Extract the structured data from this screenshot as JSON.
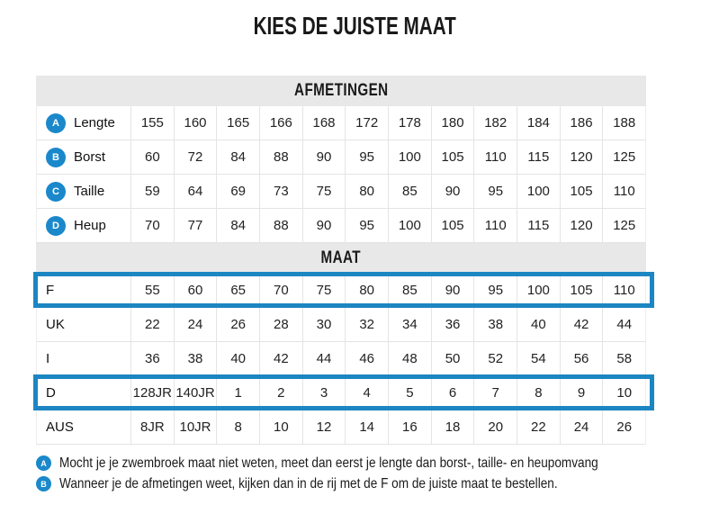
{
  "colors": {
    "accent_blue": "#1c86c2",
    "icon_blue": "#1a88ca",
    "header_bg": "#e8e8e8"
  },
  "chart_data": {
    "type": "table",
    "title": "KIES DE JUISTE MAAT",
    "sections": [
      {
        "header": "AFMETINGEN",
        "rows": [
          {
            "icon": "A",
            "label": "Lengte",
            "highlighted": false,
            "values": [
              "155",
              "160",
              "165",
              "166",
              "168",
              "172",
              "178",
              "180",
              "182",
              "184",
              "186",
              "188"
            ]
          },
          {
            "icon": "B",
            "label": "Borst",
            "highlighted": false,
            "values": [
              "60",
              "72",
              "84",
              "88",
              "90",
              "95",
              "100",
              "105",
              "110",
              "115",
              "120",
              "125"
            ]
          },
          {
            "icon": "C",
            "label": "Taille",
            "highlighted": false,
            "values": [
              "59",
              "64",
              "69",
              "73",
              "75",
              "80",
              "85",
              "90",
              "95",
              "100",
              "105",
              "110"
            ]
          },
          {
            "icon": "D",
            "label": "Heup",
            "highlighted": false,
            "values": [
              "70",
              "77",
              "84",
              "88",
              "90",
              "95",
              "100",
              "105",
              "110",
              "115",
              "120",
              "125"
            ]
          }
        ]
      },
      {
        "header": "MAAT",
        "rows": [
          {
            "icon": null,
            "label": "F",
            "highlighted": true,
            "values": [
              "55",
              "60",
              "65",
              "70",
              "75",
              "80",
              "85",
              "90",
              "95",
              "100",
              "105",
              "110"
            ]
          },
          {
            "icon": null,
            "label": "UK",
            "highlighted": false,
            "values": [
              "22",
              "24",
              "26",
              "28",
              "30",
              "32",
              "34",
              "36",
              "38",
              "40",
              "42",
              "44"
            ]
          },
          {
            "icon": null,
            "label": "I",
            "highlighted": false,
            "values": [
              "36",
              "38",
              "40",
              "42",
              "44",
              "46",
              "48",
              "50",
              "52",
              "54",
              "56",
              "58"
            ]
          },
          {
            "icon": null,
            "label": "D",
            "highlighted": true,
            "values": [
              "128JR",
              "140JR",
              "1",
              "2",
              "3",
              "4",
              "5",
              "6",
              "7",
              "8",
              "9",
              "10"
            ]
          },
          {
            "icon": null,
            "label": "AUS",
            "highlighted": false,
            "values": [
              "8JR",
              "10JR",
              "8",
              "10",
              "12",
              "14",
              "16",
              "18",
              "20",
              "22",
              "24",
              "26"
            ]
          }
        ]
      }
    ],
    "annotations": [
      {
        "icon": "A",
        "text": "Mocht je je zwembroek maat niet weten, meet dan eerst je lengte dan borst-, taille- en heupomvang"
      },
      {
        "icon": "B",
        "text": "Wanneer je de afmetingen weet, kijken dan in de rij met de F om de juiste maat te bestellen."
      }
    ]
  }
}
